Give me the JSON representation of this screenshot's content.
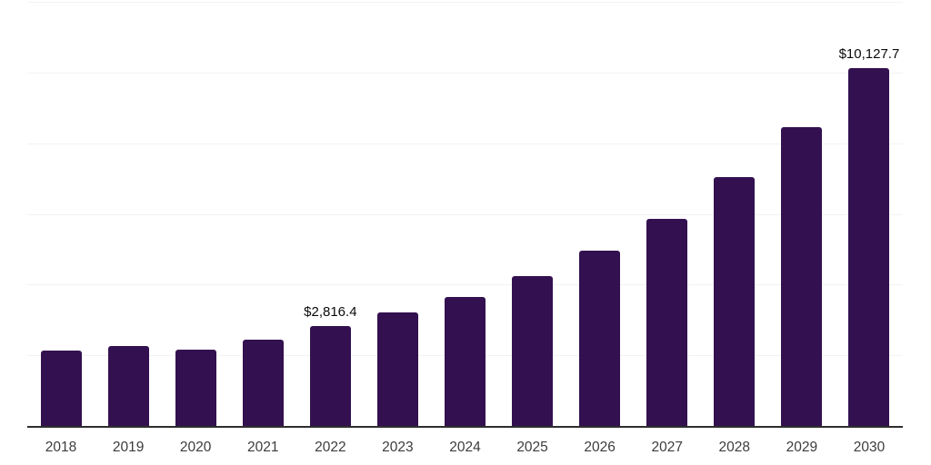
{
  "chart_data": {
    "type": "bar",
    "title": "",
    "xlabel": "",
    "ylabel": "",
    "categories": [
      "2018",
      "2019",
      "2020",
      "2021",
      "2022",
      "2023",
      "2024",
      "2025",
      "2026",
      "2027",
      "2028",
      "2029",
      "2030"
    ],
    "values": [
      2130,
      2250,
      2150,
      2450,
      2816.4,
      3200,
      3660,
      4250,
      4960,
      5870,
      7040,
      8450,
      10127.7
    ],
    "bar_labels": [
      "",
      "",
      "",
      "",
      "$2,816.4",
      "",
      "",
      "",
      "",
      "",
      "",
      "",
      "$10,127.7"
    ],
    "ylim": [
      0,
      12000
    ],
    "gridline_step": 2000,
    "grid": "horizontal",
    "legend": "none",
    "y_tick_labels_visible": false,
    "colors": {
      "bar": "#331150",
      "gridline": "#f2f2f2",
      "axis_line": "#2e2e2e",
      "data_label": "#0a0a0a",
      "tick_label": "#3c3c3c",
      "background": "#ffffff"
    }
  }
}
